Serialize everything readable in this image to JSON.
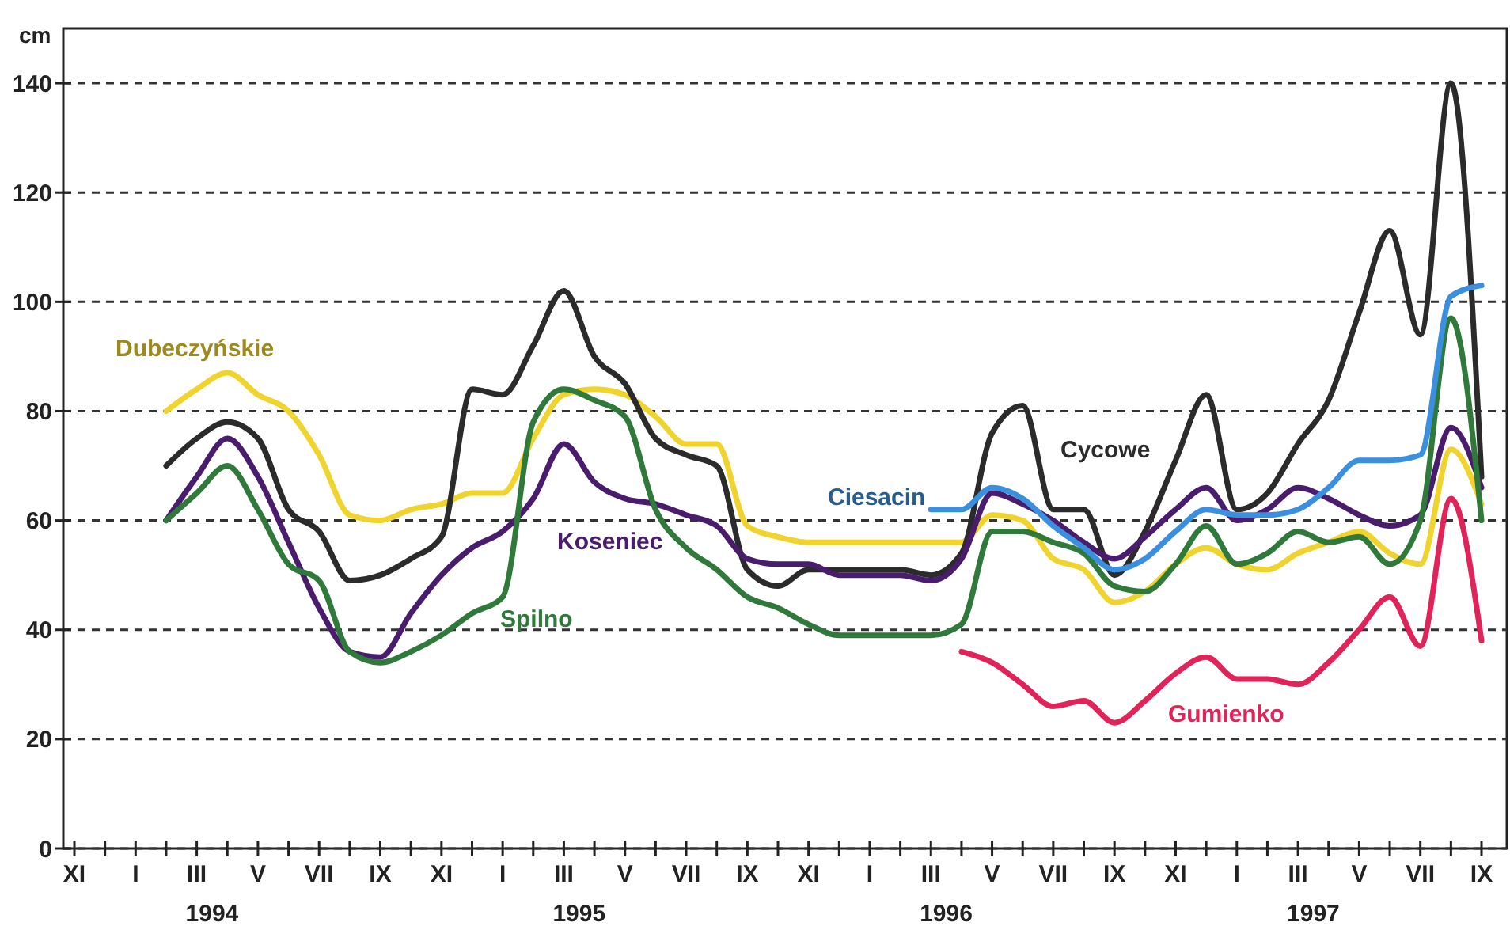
{
  "chart_data": {
    "type": "line",
    "ylabel": "cm",
    "categories": [
      "XI",
      null,
      "I",
      null,
      "III",
      null,
      "V",
      null,
      "VII",
      null,
      "IX",
      null,
      "XI",
      null,
      "I",
      null,
      "III",
      null,
      "V",
      null,
      "VII",
      null,
      "IX",
      null,
      "XI",
      null,
      "I",
      null,
      "III",
      null,
      "V",
      null,
      "VII",
      null,
      "IX",
      null,
      "XI",
      null,
      "I",
      null,
      "III",
      null,
      "V",
      null,
      "VII",
      null,
      "IX"
    ],
    "ylim": [
      0,
      150
    ],
    "yticks": [
      0,
      20,
      40,
      60,
      80,
      100,
      120,
      140
    ],
    "grid": "y",
    "legend": false,
    "marker": "none",
    "line_style": "solid",
    "annotations": [
      "1994",
      "1995",
      "1996",
      "1997"
    ],
    "series": [
      {
        "name": "Dubeczyńskie",
        "color": "#f0d32c",
        "values": [
          null,
          null,
          null,
          80,
          84,
          87,
          83,
          80,
          72,
          61,
          60,
          62,
          63,
          65,
          65,
          75,
          83,
          84,
          83,
          79,
          74,
          74,
          59,
          57,
          56,
          56,
          56,
          56,
          56,
          56,
          61,
          60,
          53,
          51,
          45,
          47,
          52,
          55,
          52,
          51,
          54,
          56,
          58,
          54,
          52,
          73,
          63
        ]
      },
      {
        "name": "Cycowe",
        "color": "#2b2b2b",
        "values": [
          null,
          null,
          null,
          70,
          75,
          78,
          75,
          62,
          58,
          49,
          50,
          53,
          57,
          84,
          83,
          92,
          102,
          90,
          85,
          75,
          72,
          70,
          51,
          48,
          51,
          51,
          51,
          51,
          50,
          54,
          76,
          81,
          62,
          62,
          50,
          58,
          71,
          83,
          62,
          65,
          74,
          82,
          98,
          113,
          94,
          140,
          68
        ]
      },
      {
        "name": "Koseniec",
        "color": "#4a1c6e",
        "values": [
          null,
          null,
          null,
          60,
          68,
          75,
          68,
          56,
          44,
          36,
          35,
          43,
          50,
          55,
          58,
          64,
          74,
          67,
          64,
          63,
          61,
          59,
          53,
          52,
          52,
          50,
          50,
          50,
          49,
          53,
          65,
          63,
          60,
          56,
          53,
          57,
          62,
          66,
          60,
          62,
          66,
          64,
          61,
          59,
          61,
          77,
          66
        ]
      },
      {
        "name": "Spilno",
        "color": "#2f7a3a",
        "values": [
          null,
          null,
          null,
          60,
          65,
          70,
          62,
          52,
          49,
          36,
          34,
          36,
          39,
          43,
          46,
          78,
          84,
          82,
          79,
          62,
          55,
          51,
          46,
          44,
          41,
          39,
          39,
          39,
          39,
          41,
          58,
          58,
          56,
          54,
          48,
          47,
          52,
          59,
          52,
          54,
          58,
          56,
          57,
          52,
          60,
          97,
          60
        ]
      },
      {
        "name": "Ciesacin",
        "color": "#3a8fdf",
        "values": [
          null,
          null,
          null,
          null,
          null,
          null,
          null,
          null,
          null,
          null,
          null,
          null,
          null,
          null,
          null,
          null,
          null,
          null,
          null,
          null,
          null,
          null,
          null,
          null,
          null,
          null,
          null,
          null,
          62,
          62,
          66,
          64,
          59,
          55,
          51,
          53,
          58,
          62,
          61,
          61,
          62,
          66,
          71,
          71,
          72,
          101,
          103
        ]
      },
      {
        "name": "Gumienko",
        "color": "#e0245a",
        "values": [
          null,
          null,
          null,
          null,
          null,
          null,
          null,
          null,
          null,
          null,
          null,
          null,
          null,
          null,
          null,
          null,
          null,
          null,
          null,
          null,
          null,
          null,
          null,
          null,
          null,
          null,
          null,
          null,
          null,
          36,
          34,
          30,
          26,
          27,
          23,
          27,
          32,
          35,
          31,
          31,
          30,
          34,
          40,
          46,
          37,
          64,
          38
        ]
      }
    ]
  }
}
